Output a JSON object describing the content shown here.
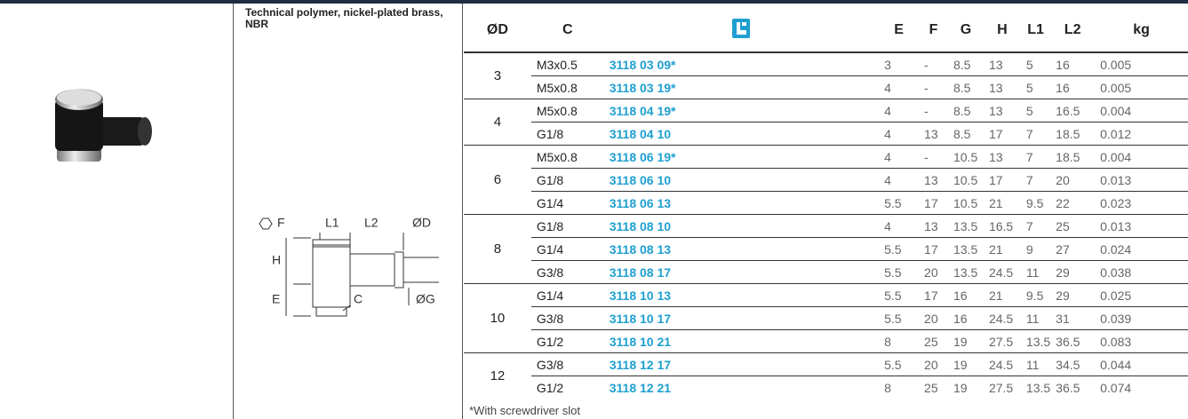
{
  "description": "Technical polymer, nickel-plated brass, NBR",
  "drawing": {
    "labels": [
      "F",
      "L1",
      "L2",
      "ØD",
      "H",
      "E",
      "C",
      "ØG"
    ]
  },
  "table": {
    "headers": [
      "ØD",
      "C",
      "E",
      "F",
      "G",
      "H",
      "L1",
      "L2",
      "kg"
    ],
    "groups": [
      {
        "d": "3",
        "rows": [
          [
            "M3x0.5",
            "3118 03 09*",
            "3",
            "-",
            "8.5",
            "13",
            "5",
            "16",
            "0.005"
          ],
          [
            "M5x0.8",
            "3118 03 19*",
            "4",
            "-",
            "8.5",
            "13",
            "5",
            "16",
            "0.005"
          ]
        ]
      },
      {
        "d": "4",
        "rows": [
          [
            "M5x0.8",
            "3118 04 19*",
            "4",
            "-",
            "8.5",
            "13",
            "5",
            "16.5",
            "0.004"
          ],
          [
            "G1/8",
            "3118 04 10",
            "4",
            "13",
            "8.5",
            "17",
            "7",
            "18.5",
            "0.012"
          ]
        ]
      },
      {
        "d": "6",
        "rows": [
          [
            "M5x0.8",
            "3118 06 19*",
            "4",
            "-",
            "10.5",
            "13",
            "7",
            "18.5",
            "0.004"
          ],
          [
            "G1/8",
            "3118 06 10",
            "4",
            "13",
            "10.5",
            "17",
            "7",
            "20",
            "0.013"
          ],
          [
            "G1/4",
            "3118 06 13",
            "5.5",
            "17",
            "10.5",
            "21",
            "9.5",
            "22",
            "0.023"
          ]
        ]
      },
      {
        "d": "8",
        "rows": [
          [
            "G1/8",
            "3118 08 10",
            "4",
            "13",
            "13.5",
            "16.5",
            "7",
            "25",
            "0.013"
          ],
          [
            "G1/4",
            "3118 08 13",
            "5.5",
            "17",
            "13.5",
            "21",
            "9",
            "27",
            "0.024"
          ],
          [
            "G3/8",
            "3118 08 17",
            "5.5",
            "20",
            "13.5",
            "24.5",
            "11",
            "29",
            "0.038"
          ]
        ]
      },
      {
        "d": "10",
        "rows": [
          [
            "G1/4",
            "3118 10 13",
            "5.5",
            "17",
            "16",
            "21",
            "9.5",
            "29",
            "0.025"
          ],
          [
            "G3/8",
            "3118 10 17",
            "5.5",
            "20",
            "16",
            "24.5",
            "11",
            "31",
            "0.039"
          ],
          [
            "G1/2",
            "3118 10 21",
            "8",
            "25",
            "19",
            "27.5",
            "13.5",
            "36.5",
            "0.083"
          ]
        ]
      },
      {
        "d": "12",
        "rows": [
          [
            "G3/8",
            "3118 12 17",
            "5.5",
            "20",
            "19",
            "24.5",
            "11",
            "34.5",
            "0.044"
          ],
          [
            "G1/2",
            "3118 12 21",
            "8",
            "25",
            "19",
            "27.5",
            "13.5",
            "36.5",
            "0.074"
          ]
        ]
      }
    ],
    "footnote": "*With screwdriver slot"
  }
}
